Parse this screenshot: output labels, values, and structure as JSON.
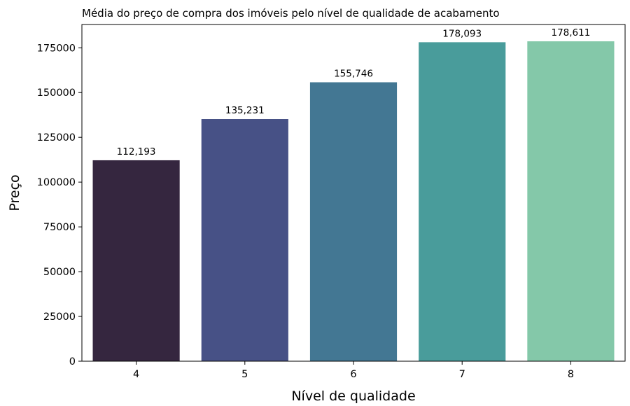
{
  "chart_data": {
    "type": "bar",
    "title": "Média do preço de compra dos imóveis pelo nível de qualidade de acabamento",
    "xlabel": "Nível de qualidade",
    "ylabel": "Preço",
    "categories": [
      "4",
      "5",
      "6",
      "7",
      "8"
    ],
    "values": [
      112193,
      135231,
      155746,
      178093,
      178611
    ],
    "data_labels": [
      "112,193",
      "135,231",
      "155,746",
      "178,093",
      "178,611"
    ],
    "bar_colors": [
      "#35263f",
      "#475186",
      "#437793",
      "#499c9b",
      "#84c8a9"
    ],
    "ylim": [
      0,
      188000
    ],
    "yticks": [
      0,
      25000,
      50000,
      75000,
      100000,
      125000,
      150000,
      175000
    ],
    "ytick_labels": [
      "0",
      "25000",
      "50000",
      "75000",
      "100000",
      "125000",
      "150000",
      "175000"
    ],
    "grid": false,
    "legend": "none"
  }
}
